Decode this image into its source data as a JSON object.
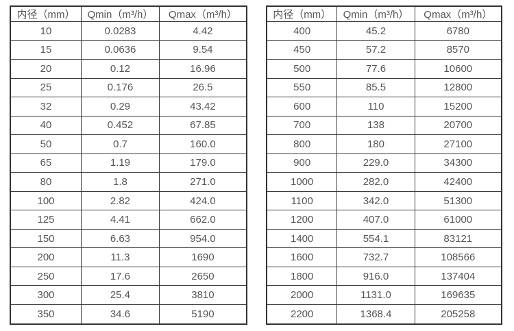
{
  "page": {
    "background_color": "#ffffff",
    "text_color": "#555555",
    "border_color": "#333333"
  },
  "tables": [
    {
      "name": "flow-rate-table-small-diameters",
      "headers": [
        "内径（mm）",
        "Qmin（m³/h）",
        "Qmax（m³/h）"
      ],
      "rows": [
        [
          "10",
          "0.0283",
          "4.42"
        ],
        [
          "15",
          "0.0636",
          "9.54"
        ],
        [
          "20",
          "0.12",
          "16.96"
        ],
        [
          "25",
          "0.176",
          "26.5"
        ],
        [
          "32",
          "0.29",
          "43.42"
        ],
        [
          "40",
          "0.452",
          "67.85"
        ],
        [
          "50",
          "0.7",
          "160.0"
        ],
        [
          "65",
          "1.19",
          "179.0"
        ],
        [
          "80",
          "1.8",
          "271.0"
        ],
        [
          "100",
          "2.82",
          "424.0"
        ],
        [
          "125",
          "4.41",
          "662.0"
        ],
        [
          "150",
          "6.63",
          "954.0"
        ],
        [
          "200",
          "11.3",
          "1690"
        ],
        [
          "250",
          "17.6",
          "2650"
        ],
        [
          "300",
          "25.4",
          "3810"
        ],
        [
          "350",
          "34.6",
          "5190"
        ]
      ]
    },
    {
      "name": "flow-rate-table-large-diameters",
      "headers": [
        "内径（mm）",
        "Qmin（m³/h）",
        "Qmax（m³/h）"
      ],
      "rows": [
        [
          "400",
          "45.2",
          "6780"
        ],
        [
          "450",
          "57.2",
          "8570"
        ],
        [
          "500",
          "77.6",
          "10600"
        ],
        [
          "550",
          "85.5",
          "12800"
        ],
        [
          "600",
          "110",
          "15200"
        ],
        [
          "700",
          "138",
          "20700"
        ],
        [
          "800",
          "180",
          "27100"
        ],
        [
          "900",
          "229.0",
          "34300"
        ],
        [
          "1000",
          "282.0",
          "42400"
        ],
        [
          "1100",
          "342.0",
          "51300"
        ],
        [
          "1200",
          "407.0",
          "61000"
        ],
        [
          "1400",
          "554.1",
          "83121"
        ],
        [
          "1600",
          "732.7",
          "108566"
        ],
        [
          "1800",
          "916.0",
          "137404"
        ],
        [
          "2000",
          "1131.0",
          "169635"
        ],
        [
          "2200",
          "1368.4",
          "205258"
        ]
      ]
    }
  ]
}
